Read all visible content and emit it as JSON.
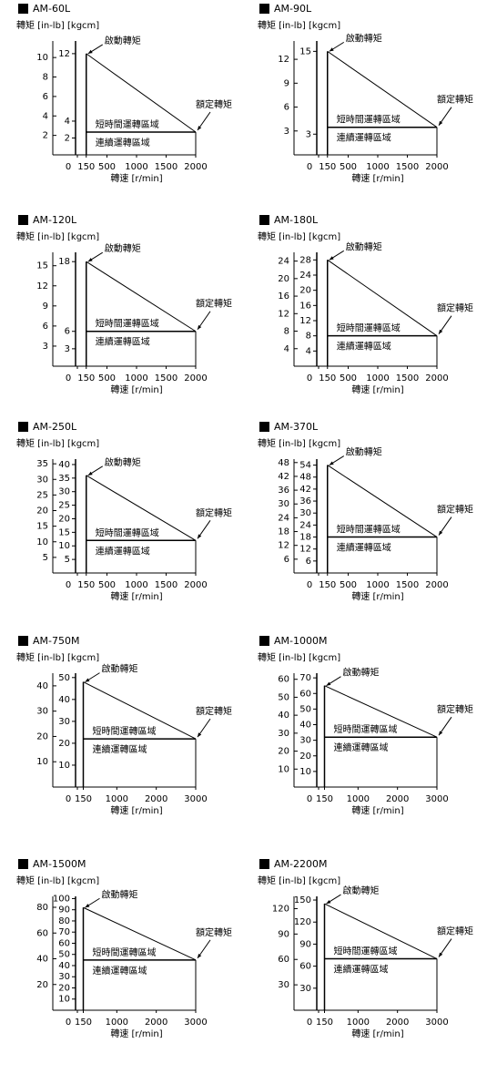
{
  "chart_data": [
    {
      "type": "line",
      "title": "AM-60L",
      "y_label": "轉矩 [in-lb] [kgcm]",
      "x_label": "轉速 [r/min]",
      "xlim": [
        0,
        2000
      ],
      "xticks": [
        0,
        150,
        500,
        1000,
        1500,
        2000
      ],
      "ylim": [
        0,
        11.7
      ],
      "yticks": [
        2,
        4,
        6,
        8,
        10
      ],
      "y2lim": [
        0,
        13.5
      ],
      "y2ticks": [
        2,
        4,
        12
      ],
      "series": [
        {
          "x": [
            150,
            2000
          ],
          "values": [
            12,
            2.7
          ],
          "axis": "y2",
          "color": "#000000"
        }
      ],
      "annotations": [
        "啟動轉矩",
        "額定轉矩",
        "短時間運轉區域",
        "連續運轉區域"
      ]
    },
    {
      "type": "line",
      "title": "AM-90L",
      "y_label": "轉矩 [in-lb] [kgcm]",
      "x_label": "轉速 [r/min]",
      "xlim": [
        0,
        2000
      ],
      "xticks": [
        0,
        150,
        500,
        1000,
        1500,
        2000
      ],
      "ylim": [
        0,
        14.3
      ],
      "yticks": [
        3,
        6,
        9,
        12
      ],
      "y2lim": [
        0,
        16.5
      ],
      "y2ticks": [
        3,
        15
      ],
      "series": [
        {
          "x": [
            150,
            2000
          ],
          "values": [
            15,
            4
          ],
          "axis": "y2",
          "color": "#000000"
        }
      ],
      "annotations": [
        "啟動轉矩",
        "額定轉矩",
        "短時間運轉區域",
        "連續運轉區域"
      ]
    },
    {
      "type": "line",
      "title": "AM-120L",
      "y_label": "轉矩 [in-lb] [kgcm]",
      "x_label": "轉速 [r/min]",
      "xlim": [
        0,
        2000
      ],
      "xticks": [
        0,
        150,
        500,
        1000,
        1500,
        2000
      ],
      "ylim": [
        0,
        17
      ],
      "yticks": [
        3,
        6,
        9,
        12,
        15
      ],
      "y2lim": [
        0,
        19.6
      ],
      "y2ticks": [
        3,
        6,
        18
      ],
      "series": [
        {
          "x": [
            150,
            2000
          ],
          "values": [
            18,
            6
          ],
          "axis": "y2",
          "color": "#000000"
        }
      ],
      "annotations": [
        "啟動轉矩",
        "額定轉矩",
        "短時間運轉區域",
        "連續運轉區域"
      ]
    },
    {
      "type": "line",
      "title": "AM-180L",
      "y_label": "轉矩 [in-lb] [kgcm]",
      "x_label": "轉速 [r/min]",
      "xlim": [
        0,
        2000
      ],
      "xticks": [
        0,
        150,
        500,
        1000,
        1500,
        2000
      ],
      "ylim": [
        0,
        26
      ],
      "yticks": [
        4,
        8,
        12,
        16,
        20,
        24
      ],
      "y2lim": [
        0,
        30
      ],
      "y2ticks": [
        4,
        8,
        12,
        16,
        20,
        24,
        28
      ],
      "series": [
        {
          "x": [
            150,
            2000
          ],
          "values": [
            28,
            8
          ],
          "axis": "y2",
          "color": "#000000"
        }
      ],
      "annotations": [
        "啟動轉矩",
        "額定轉矩",
        "短時間運轉區域",
        "連續運轉區域"
      ]
    },
    {
      "type": "line",
      "title": "AM-250L",
      "y_label": "轉矩 [in-lb] [kgcm]",
      "x_label": "轉速 [r/min]",
      "xlim": [
        0,
        2000
      ],
      "xticks": [
        0,
        150,
        500,
        1000,
        1500,
        2000
      ],
      "ylim": [
        0,
        36.5
      ],
      "yticks": [
        5,
        10,
        15,
        20,
        25,
        30,
        35
      ],
      "y2lim": [
        0,
        42
      ],
      "y2ticks": [
        5,
        10,
        15,
        20,
        25,
        30,
        35,
        40
      ],
      "series": [
        {
          "x": [
            150,
            2000
          ],
          "values": [
            36,
            12
          ],
          "axis": "y2",
          "color": "#000000"
        }
      ],
      "annotations": [
        "啟動轉矩",
        "額定轉矩",
        "短時間運轉區域",
        "連續運轉區域"
      ]
    },
    {
      "type": "line",
      "title": "AM-370L",
      "y_label": "轉矩 [in-lb] [kgcm]",
      "x_label": "轉速 [r/min]",
      "xlim": [
        0,
        2000
      ],
      "xticks": [
        0,
        150,
        500,
        1000,
        1500,
        2000
      ],
      "ylim": [
        0,
        49.5
      ],
      "yticks": [
        6,
        12,
        18,
        24,
        30,
        36,
        42,
        48
      ],
      "y2lim": [
        0,
        57
      ],
      "y2ticks": [
        6,
        12,
        18,
        24,
        30,
        36,
        42,
        48,
        54
      ],
      "series": [
        {
          "x": [
            150,
            2000
          ],
          "values": [
            54,
            18
          ],
          "axis": "y2",
          "color": "#000000"
        }
      ],
      "annotations": [
        "啟動轉矩",
        "額定轉矩",
        "短時間運轉區域",
        "連續運轉區域"
      ]
    },
    {
      "type": "line",
      "title": "AM-750M",
      "y_label": "轉矩 [in-lb] [kgcm]",
      "x_label": "轉速 [r/min]",
      "xlim": [
        0,
        3000
      ],
      "xticks": [
        0,
        150,
        1000,
        2000,
        3000
      ],
      "ylim": [
        0,
        45
      ],
      "yticks": [
        10,
        20,
        30,
        40
      ],
      "y2lim": [
        0,
        52
      ],
      "y2ticks": [
        10,
        20,
        30,
        40,
        50
      ],
      "series": [
        {
          "x": [
            150,
            3000
          ],
          "values": [
            48,
            22
          ],
          "axis": "y2",
          "color": "#000000"
        }
      ],
      "annotations": [
        "啟動轉矩",
        "額定轉矩",
        "短時間運轉區域",
        "連續運轉區域"
      ]
    },
    {
      "type": "line",
      "title": "AM-1000M",
      "y_label": "轉矩 [in-lb] [kgcm]",
      "x_label": "轉速 [r/min]",
      "xlim": [
        0,
        3000
      ],
      "xticks": [
        0,
        150,
        1000,
        2000,
        3000
      ],
      "ylim": [
        0,
        63.4
      ],
      "yticks": [
        10,
        20,
        30,
        40,
        50,
        60
      ],
      "y2lim": [
        0,
        73
      ],
      "y2ticks": [
        10,
        20,
        30,
        40,
        50,
        60,
        70
      ],
      "series": [
        {
          "x": [
            150,
            3000
          ],
          "values": [
            65,
            32
          ],
          "axis": "y2",
          "color": "#000000"
        }
      ],
      "annotations": [
        "啟動轉矩",
        "額定轉矩",
        "短時間運轉區域",
        "連續運轉區域"
      ]
    },
    {
      "type": "line",
      "title": "AM-1500M",
      "y_label": "轉矩 [in-lb] [kgcm]",
      "x_label": "轉速 [r/min]",
      "xlim": [
        0,
        3000
      ],
      "xticks": [
        0,
        150,
        1000,
        2000,
        3000
      ],
      "ylim": [
        0,
        88.5
      ],
      "yticks": [
        20,
        40,
        60,
        80
      ],
      "y2lim": [
        0,
        102
      ],
      "y2ticks": [
        10,
        20,
        30,
        40,
        50,
        60,
        70,
        80,
        90,
        100
      ],
      "series": [
        {
          "x": [
            150,
            3000
          ],
          "values": [
            92,
            45
          ],
          "axis": "y2",
          "color": "#000000"
        }
      ],
      "annotations": [
        "啟動轉矩",
        "額定轉矩",
        "短時間運轉區域",
        "連續運轉區域"
      ]
    },
    {
      "type": "line",
      "title": "AM-2200M",
      "y_label": "轉矩 [in-lb] [kgcm]",
      "x_label": "轉速 [r/min]",
      "xlim": [
        0,
        3000
      ],
      "xticks": [
        0,
        150,
        1000,
        2000,
        3000
      ],
      "ylim": [
        0,
        134.5
      ],
      "yticks": [
        30,
        60,
        90,
        120
      ],
      "y2lim": [
        0,
        155
      ],
      "y2ticks": [
        30,
        60,
        90,
        120,
        150
      ],
      "series": [
        {
          "x": [
            150,
            3000
          ],
          "values": [
            145,
            70
          ],
          "axis": "y2",
          "color": "#000000"
        }
      ],
      "annotations": [
        "啟動轉矩",
        "額定轉矩",
        "短時間運轉區域",
        "連續運轉區域"
      ]
    }
  ]
}
